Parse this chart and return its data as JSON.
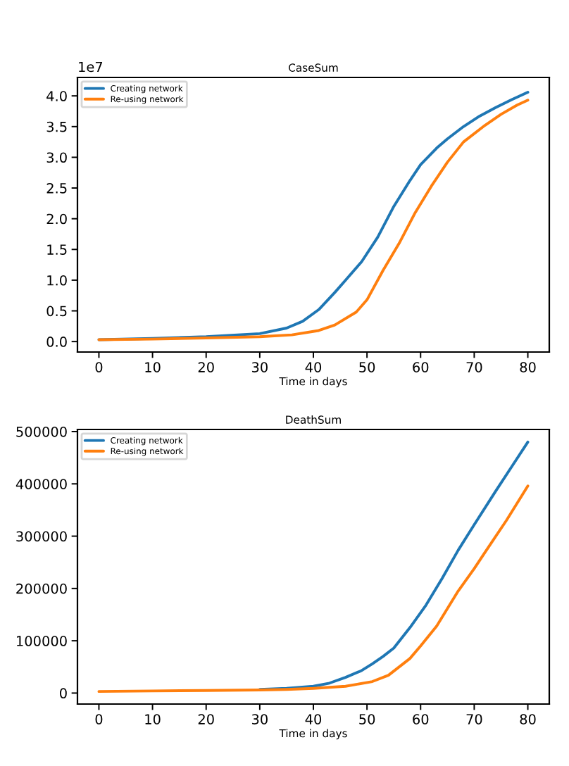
{
  "chart_data": [
    {
      "type": "line",
      "title": "CaseSum",
      "xlabel": "Time in days",
      "annotations": [
        "1e7"
      ],
      "legend": "top left",
      "xlim": [
        -4,
        84
      ],
      "xticks": [
        0,
        10,
        20,
        30,
        40,
        50,
        60,
        70,
        80
      ],
      "ylim": [
        -0.17,
        4.3
      ],
      "yticks": [
        {
          "value": 0,
          "label": "0.0"
        },
        0.5,
        {
          "value": 1,
          "label": "1.0"
        },
        1.5,
        {
          "value": 2,
          "label": "2.0"
        },
        2.5,
        {
          "value": 3,
          "label": "3.0"
        },
        3.5,
        {
          "value": 4,
          "label": "4.0"
        }
      ],
      "series": [
        {
          "name": "Creating network",
          "color": "#1f77b4",
          "x": [
            0,
            10,
            20,
            30,
            35,
            38,
            41,
            44,
            46,
            49,
            52,
            55,
            58,
            60,
            63,
            65,
            68,
            71,
            74,
            77,
            80
          ],
          "values": [
            0.03,
            0.05,
            0.08,
            0.13,
            0.22,
            0.33,
            0.52,
            0.8,
            1.0,
            1.3,
            1.7,
            2.2,
            2.62,
            2.88,
            3.15,
            3.3,
            3.5,
            3.67,
            3.81,
            3.94,
            4.06
          ]
        },
        {
          "name": "Re-using network",
          "color": "#ff7f0e",
          "x": [
            0,
            10,
            20,
            30,
            36,
            41,
            44,
            48,
            50,
            53,
            56,
            59,
            62,
            65,
            68,
            72,
            75,
            78,
            80
          ],
          "values": [
            0.03,
            0.04,
            0.06,
            0.08,
            0.11,
            0.18,
            0.27,
            0.48,
            0.68,
            1.16,
            1.6,
            2.1,
            2.53,
            2.92,
            3.25,
            3.52,
            3.7,
            3.85,
            3.93
          ]
        }
      ]
    },
    {
      "type": "line",
      "title": "DeathSum",
      "xlabel": "Time in days",
      "legend": "top left",
      "xlim": [
        -4,
        84
      ],
      "xticks": [
        0,
        10,
        20,
        30,
        40,
        50,
        60,
        70,
        80
      ],
      "ylim": [
        -21000,
        504000
      ],
      "yticks": [
        0,
        100000,
        200000,
        300000,
        400000,
        500000
      ],
      "series": [
        {
          "name": "Creating network",
          "color": "#1f77b4",
          "x": [
            30,
            35,
            40,
            43,
            46,
            49,
            51,
            53,
            55,
            58,
            61,
            64,
            67,
            70,
            74,
            77,
            80
          ],
          "values": [
            7000,
            9000,
            13000,
            19000,
            30000,
            43000,
            56000,
            70000,
            86000,
            125000,
            168000,
            219000,
            273000,
            322000,
            386000,
            433000,
            480000
          ]
        },
        {
          "name": "Re-using network",
          "color": "#ff7f0e",
          "x": [
            0,
            10,
            20,
            30,
            35,
            40,
            46,
            51,
            54,
            58,
            60,
            63,
            67,
            70,
            72,
            76,
            80
          ],
          "values": [
            3000,
            4000,
            5000,
            6000,
            7000,
            9000,
            13000,
            22000,
            34000,
            66000,
            90000,
            128000,
            195000,
            238000,
            269000,
            330000,
            396000
          ]
        }
      ]
    }
  ]
}
